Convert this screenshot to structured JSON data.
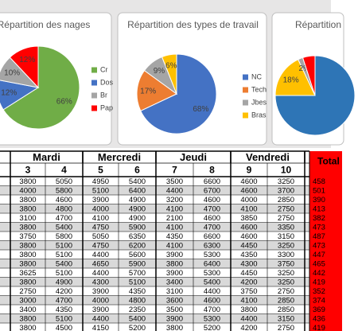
{
  "chart_data": [
    {
      "type": "pie",
      "title": "Répartition des nages",
      "categories": [
        "Cr",
        "Dos",
        "Br",
        "Pap"
      ],
      "values": [
        66,
        12,
        10,
        12
      ],
      "value_labels": [
        "66%",
        "12%",
        "10%",
        "12%"
      ],
      "colors": [
        "#70ad47",
        "#4472c4",
        "#a5a5a5",
        "#ff0000"
      ]
    },
    {
      "type": "pie",
      "title": "Répartition des types de travail",
      "categories": [
        "NC",
        "Tech",
        "Jbes",
        "Bras"
      ],
      "values": [
        68,
        17,
        9,
        6
      ],
      "value_labels": [
        "68%",
        "17%",
        "9%",
        "6%"
      ],
      "colors": [
        "#4472c4",
        "#ed7d31",
        "#a5a5a5",
        "#ffc000"
      ]
    },
    {
      "type": "pie",
      "title": "Répartition",
      "categories": [
        null,
        null,
        null,
        null
      ],
      "values": [
        75,
        18,
        2,
        5
      ],
      "value_labels": [
        null,
        "18%",
        "2%",
        null
      ],
      "colors": [
        "#2e75b6",
        "#ffc000",
        "#a5a5a5",
        "#ff0000"
      ]
    }
  ],
  "table": {
    "days": [
      "Mardi",
      "Mercredi",
      "Jeudi",
      "Vendredi"
    ],
    "total_header": "Total",
    "columns": [
      3,
      4,
      5,
      6,
      7,
      8,
      9,
      10
    ],
    "rows": [
      [
        3800,
        5050,
        4950,
        5400,
        3500,
        6600,
        4600,
        3250,
        "458"
      ],
      [
        4000,
        5800,
        5100,
        6400,
        4400,
        6700,
        4600,
        3700,
        "501"
      ],
      [
        3800,
        4600,
        3900,
        4900,
        3200,
        4600,
        4000,
        2850,
        "390"
      ],
      [
        3800,
        4800,
        4000,
        4900,
        4100,
        4700,
        4100,
        2750,
        "413"
      ],
      [
        3100,
        4700,
        4100,
        4900,
        2100,
        4600,
        3850,
        2750,
        "382"
      ],
      [
        3800,
        5400,
        4750,
        5900,
        4100,
        4700,
        4600,
        3350,
        "473"
      ],
      [
        3750,
        5800,
        5050,
        6350,
        4350,
        6600,
        4600,
        3150,
        "487"
      ],
      [
        3800,
        5100,
        4750,
        6200,
        4100,
        6300,
        4450,
        3250,
        "473"
      ],
      [
        3800,
        5100,
        4400,
        5600,
        3900,
        5300,
        4350,
        3300,
        "447"
      ],
      [
        3800,
        5400,
        4650,
        5900,
        3800,
        6400,
        4300,
        3750,
        "465"
      ],
      [
        3625,
        5100,
        4400,
        5700,
        3900,
        5300,
        4450,
        3250,
        "442"
      ],
      [
        3800,
        4900,
        4300,
        5100,
        3400,
        5400,
        4200,
        3250,
        "419"
      ],
      [
        2750,
        4200,
        3900,
        4350,
        3100,
        4400,
        3750,
        2750,
        "352"
      ],
      [
        3000,
        4700,
        4000,
        4800,
        3600,
        4600,
        4100,
        2850,
        "374"
      ],
      [
        3400,
        4350,
        3900,
        2350,
        3500,
        4700,
        3800,
        2850,
        "369"
      ],
      [
        3800,
        5100,
        4400,
        5400,
        3900,
        5300,
        4400,
        3150,
        "436"
      ],
      [
        3800,
        4500,
        4150,
        5200,
        3800,
        5200,
        4200,
        2750,
        "419"
      ]
    ]
  }
}
